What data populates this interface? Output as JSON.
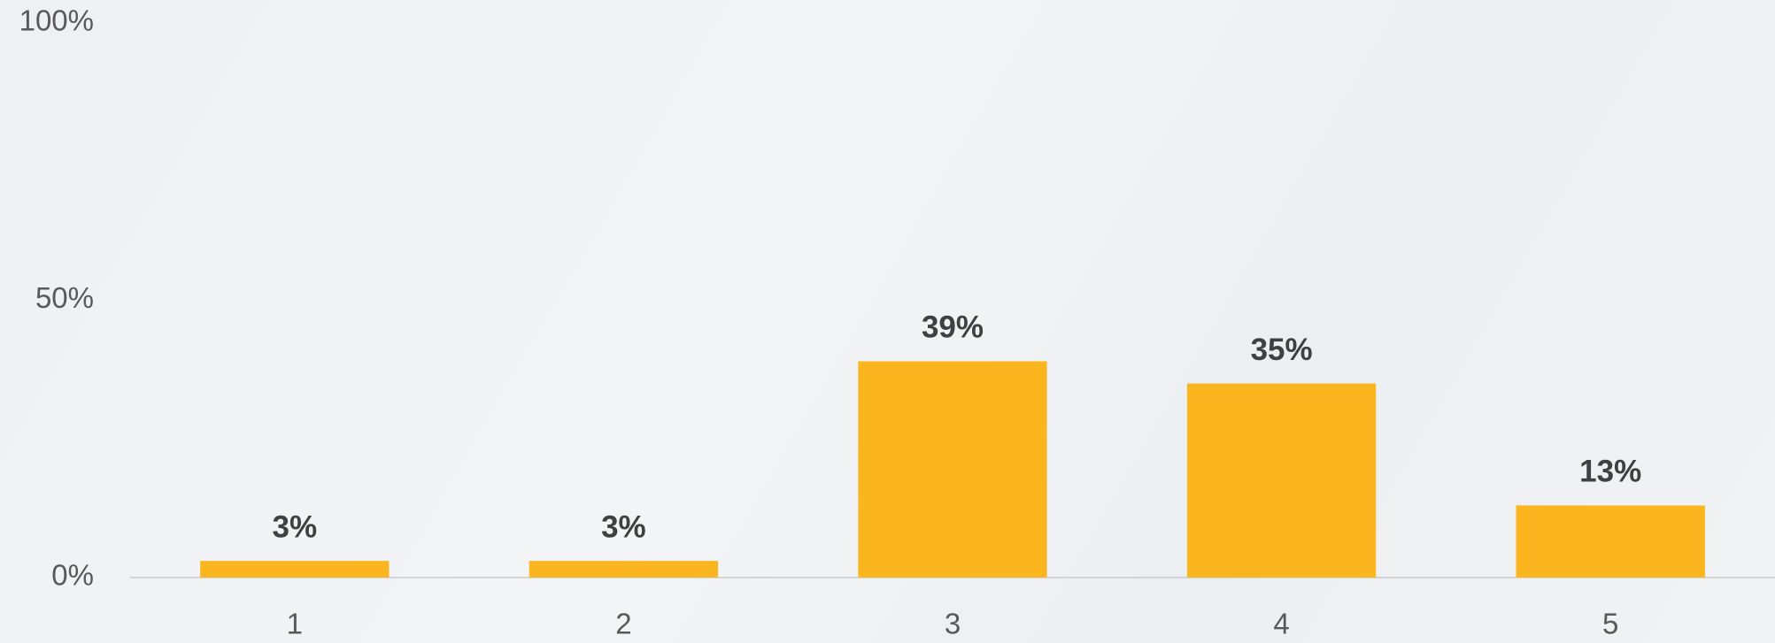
{
  "chart_data": {
    "type": "bar",
    "categories": [
      "1",
      "2",
      "3",
      "4",
      "5"
    ],
    "values": [
      3,
      3,
      39,
      35,
      13
    ],
    "value_labels": [
      "3%",
      "3%",
      "39%",
      "35%",
      "13%"
    ],
    "color": "#fbb61f",
    "ylim": [
      0,
      100
    ],
    "yticks": [
      {
        "value": 0,
        "label": "0%"
      },
      {
        "value": 50,
        "label": "50%"
      },
      {
        "value": 100,
        "label": "100%"
      }
    ],
    "grid": false
  }
}
